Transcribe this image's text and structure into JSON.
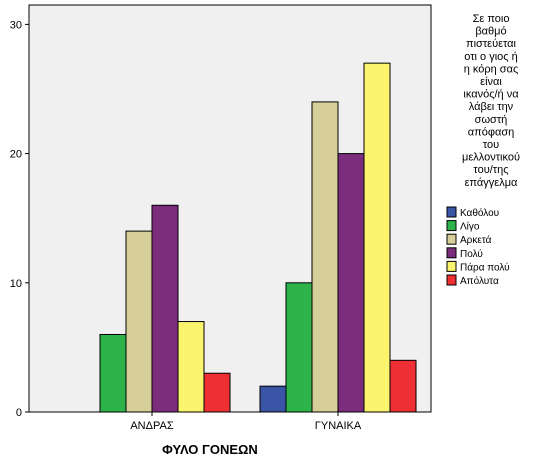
{
  "chart_data": {
    "type": "bar",
    "categories": [
      "ΑΝΔΡΑΣ",
      "ΓΥΝΑΙΚΑ"
    ],
    "series": [
      {
        "name": "Καθόλου",
        "color": "#3b55a6",
        "values": [
          0,
          2
        ]
      },
      {
        "name": "Λίγο",
        "color": "#2db34a",
        "values": [
          6,
          10
        ]
      },
      {
        "name": "Αρκετά",
        "color": "#d6cf9a",
        "values": [
          14,
          24
        ]
      },
      {
        "name": "Πολύ",
        "color": "#7b2c7d",
        "values": [
          16,
          20
        ]
      },
      {
        "name": "Πάρα πολύ",
        "color": "#fbf56e",
        "values": [
          7,
          27
        ]
      },
      {
        "name": "Απόλυτα",
        "color": "#ee2f34",
        "values": [
          3,
          4
        ]
      }
    ],
    "xlabel": "ΦΥΛΟ ΓΟΝΕΩΝ",
    "ylabel": "",
    "ylim": [
      0,
      31.5
    ],
    "yticks": [
      0,
      10,
      20,
      30
    ],
    "legend": {
      "placement": "right",
      "title_lines": [
        "Σε ποιο",
        "βαθμό",
        "πιστεύεται",
        "οτι ο γιος ή",
        "η κόρη σας",
        "είναι",
        "ικανός/ή να",
        "λάβει την",
        "σωστή",
        "απόφαση",
        "του",
        "μελλοντικού",
        "του/της",
        "επάγγελμα"
      ]
    },
    "grid": false,
    "plot_background": "#f0f0f0"
  }
}
